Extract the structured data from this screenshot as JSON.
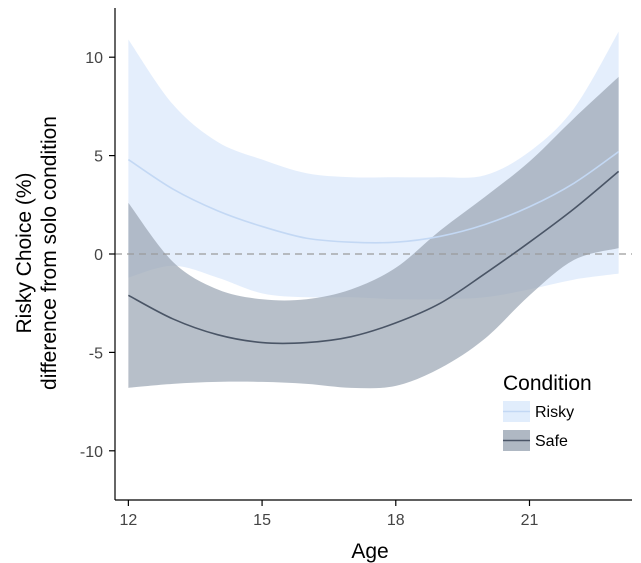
{
  "chart_data": {
    "type": "line",
    "xlabel": "Age",
    "ylabel_line1": "Risky Choice (%)",
    "ylabel_line2": "difference from solo condition",
    "xlim": [
      11.7,
      23.3
    ],
    "ylim": [
      -12.5,
      12.5
    ],
    "x_ticks": [
      12,
      15,
      18,
      21
    ],
    "y_ticks": [
      -10,
      -5,
      0,
      5,
      10
    ],
    "reference_line": {
      "y": 0,
      "style": "dashed"
    },
    "grid": false,
    "legend": {
      "title": "Condition",
      "position": "bottom-right",
      "entries": [
        "Risky",
        "Safe"
      ]
    },
    "series": [
      {
        "name": "Risky",
        "line_color": "#c3d8f4",
        "band_color": "#d9e8fb",
        "x": [
          12,
          13,
          14,
          15,
          16,
          17,
          18,
          19,
          20,
          21,
          22,
          23
        ],
        "y": [
          4.8,
          3.3,
          2.2,
          1.4,
          0.8,
          0.6,
          0.6,
          0.9,
          1.5,
          2.4,
          3.6,
          5.2
        ],
        "lower": [
          -1.2,
          -0.6,
          -1.2,
          -2.0,
          -2.2,
          -2.2,
          -2.3,
          -2.3,
          -2.2,
          -1.8,
          -1.3,
          -1.0
        ],
        "upper": [
          10.9,
          7.6,
          5.7,
          4.8,
          4.1,
          3.9,
          3.9,
          3.9,
          4.0,
          5.2,
          7.4,
          11.3
        ]
      },
      {
        "name": "Safe",
        "line_color": "#4a5566",
        "band_color": "#9ba6b4",
        "x": [
          12,
          13,
          14,
          15,
          16,
          17,
          18,
          19,
          20,
          21,
          22,
          23
        ],
        "y": [
          -2.1,
          -3.3,
          -4.1,
          -4.5,
          -4.5,
          -4.2,
          -3.5,
          -2.5,
          -1.0,
          0.6,
          2.3,
          4.2
        ],
        "lower": [
          -6.8,
          -6.6,
          -6.5,
          -6.5,
          -6.6,
          -6.8,
          -6.7,
          -5.8,
          -4.3,
          -2.1,
          -0.3,
          0.3
        ],
        "upper": [
          2.6,
          -0.4,
          -1.8,
          -2.3,
          -2.3,
          -1.8,
          -0.7,
          1.2,
          2.9,
          4.7,
          6.9,
          9.0
        ]
      }
    ]
  }
}
